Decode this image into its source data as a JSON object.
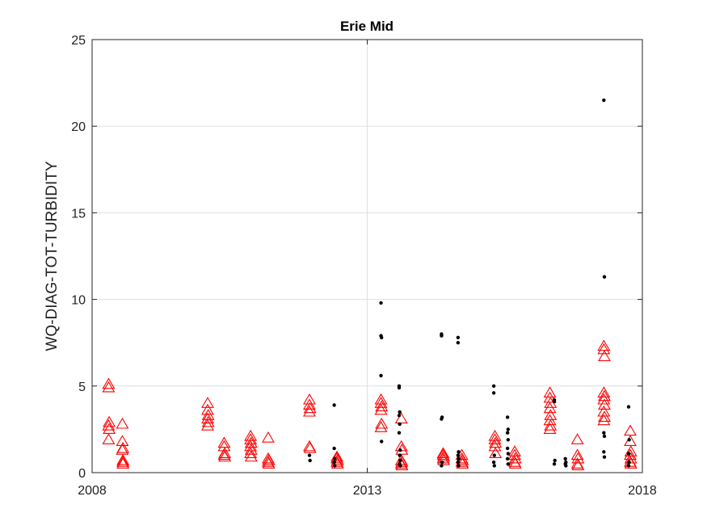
{
  "chart_data": {
    "type": "scatter",
    "title": "Erie Mid",
    "xlabel": "",
    "ylabel": "WQ-DIAG-TOT-TURBIDITY",
    "xlim": [
      2008,
      2018
    ],
    "ylim": [
      0,
      25
    ],
    "xticks": [
      2008,
      2013,
      2018
    ],
    "xtick_labels": [
      "2008",
      "2013",
      "2018"
    ],
    "yticks": [
      0,
      5,
      10,
      15,
      20,
      25
    ],
    "ytick_labels": [
      "0",
      "5",
      "10",
      "15",
      "20",
      "25"
    ],
    "grid": true,
    "legend": "none",
    "colors": {
      "observed": "#ff0000",
      "modelled": "#000000"
    },
    "series": [
      {
        "marker": "open-triangle",
        "color": "#ff0000",
        "points": [
          [
            2008.3,
            5.1
          ],
          [
            2008.3,
            4.9
          ],
          [
            2008.31,
            2.9
          ],
          [
            2008.3,
            2.7
          ],
          [
            2008.31,
            2.5
          ],
          [
            2008.3,
            1.9
          ],
          [
            2008.55,
            2.8
          ],
          [
            2008.55,
            1.8
          ],
          [
            2008.56,
            1.4
          ],
          [
            2008.55,
            1.3
          ],
          [
            2008.56,
            0.7
          ],
          [
            2008.56,
            0.6
          ],
          [
            2008.56,
            0.5
          ],
          [
            2010.1,
            4.0
          ],
          [
            2010.1,
            3.6
          ],
          [
            2010.11,
            3.3
          ],
          [
            2010.1,
            3.1
          ],
          [
            2010.11,
            2.9
          ],
          [
            2010.1,
            2.7
          ],
          [
            2010.4,
            1.7
          ],
          [
            2010.4,
            1.5
          ],
          [
            2010.41,
            1.1
          ],
          [
            2010.4,
            1.0
          ],
          [
            2010.41,
            0.9
          ],
          [
            2010.88,
            2.1
          ],
          [
            2010.88,
            1.9
          ],
          [
            2010.89,
            1.7
          ],
          [
            2010.88,
            1.5
          ],
          [
            2010.89,
            1.3
          ],
          [
            2010.88,
            1.1
          ],
          [
            2010.89,
            0.9
          ],
          [
            2011.2,
            2.0
          ],
          [
            2011.2,
            0.8
          ],
          [
            2011.21,
            0.7
          ],
          [
            2011.2,
            0.6
          ],
          [
            2011.21,
            0.5
          ],
          [
            2011.95,
            4.2
          ],
          [
            2011.95,
            3.9
          ],
          [
            2011.96,
            3.7
          ],
          [
            2011.95,
            3.5
          ],
          [
            2011.95,
            1.5
          ],
          [
            2011.96,
            1.4
          ],
          [
            2012.45,
            0.9
          ],
          [
            2012.45,
            0.8
          ],
          [
            2012.46,
            0.7
          ],
          [
            2012.45,
            0.6
          ],
          [
            2012.46,
            0.5
          ],
          [
            2013.25,
            4.2
          ],
          [
            2013.25,
            4.0
          ],
          [
            2013.26,
            3.8
          ],
          [
            2013.25,
            3.6
          ],
          [
            2013.26,
            2.8
          ],
          [
            2013.25,
            2.6
          ],
          [
            2013.62,
            3.1
          ],
          [
            2013.62,
            1.5
          ],
          [
            2013.63,
            1.3
          ],
          [
            2013.62,
            0.7
          ],
          [
            2013.63,
            0.6
          ],
          [
            2013.62,
            0.5
          ],
          [
            2013.63,
            0.4
          ],
          [
            2014.38,
            1.1
          ],
          [
            2014.38,
            1.0
          ],
          [
            2014.39,
            0.9
          ],
          [
            2014.38,
            0.8
          ],
          [
            2014.39,
            0.7
          ],
          [
            2014.72,
            1.0
          ],
          [
            2014.72,
            0.8
          ],
          [
            2014.73,
            0.7
          ],
          [
            2014.72,
            0.6
          ],
          [
            2014.73,
            0.5
          ],
          [
            2015.32,
            2.1
          ],
          [
            2015.32,
            1.9
          ],
          [
            2015.33,
            1.7
          ],
          [
            2015.32,
            1.5
          ],
          [
            2015.33,
            1.1
          ],
          [
            2015.68,
            1.2
          ],
          [
            2015.68,
            1.0
          ],
          [
            2015.69,
            0.8
          ],
          [
            2015.68,
            0.6
          ],
          [
            2015.69,
            0.5
          ],
          [
            2016.32,
            4.6
          ],
          [
            2016.32,
            4.3
          ],
          [
            2016.33,
            4.0
          ],
          [
            2016.32,
            3.7
          ],
          [
            2016.33,
            3.3
          ],
          [
            2016.32,
            3.0
          ],
          [
            2016.33,
            2.7
          ],
          [
            2016.32,
            2.5
          ],
          [
            2016.82,
            1.9
          ],
          [
            2016.82,
            1.0
          ],
          [
            2016.83,
            0.8
          ],
          [
            2016.82,
            0.5
          ],
          [
            2016.83,
            0.4
          ],
          [
            2017.3,
            7.3
          ],
          [
            2017.3,
            7.1
          ],
          [
            2017.31,
            6.7
          ],
          [
            2017.3,
            4.6
          ],
          [
            2017.31,
            4.4
          ],
          [
            2017.3,
            4.2
          ],
          [
            2017.31,
            3.9
          ],
          [
            2017.3,
            3.5
          ],
          [
            2017.31,
            3.2
          ],
          [
            2017.3,
            3.0
          ],
          [
            2017.78,
            2.4
          ],
          [
            2017.78,
            1.8
          ],
          [
            2017.79,
            1.2
          ],
          [
            2017.78,
            1.0
          ],
          [
            2017.79,
            0.8
          ],
          [
            2017.78,
            0.6
          ],
          [
            2017.79,
            0.5
          ]
        ]
      },
      {
        "marker": "dot",
        "color": "#000000",
        "points": [
          [
            2011.95,
            1.0
          ],
          [
            2011.96,
            0.7
          ],
          [
            2012.4,
            3.9
          ],
          [
            2012.4,
            1.4
          ],
          [
            2012.41,
            0.8
          ],
          [
            2012.4,
            0.6
          ],
          [
            2012.41,
            0.4
          ],
          [
            2013.25,
            9.8
          ],
          [
            2013.25,
            7.9
          ],
          [
            2013.26,
            7.8
          ],
          [
            2013.25,
            5.6
          ],
          [
            2013.26,
            1.8
          ],
          [
            2013.58,
            5.0
          ],
          [
            2013.58,
            4.9
          ],
          [
            2013.59,
            3.5
          ],
          [
            2013.58,
            3.3
          ],
          [
            2013.59,
            2.8
          ],
          [
            2013.58,
            2.3
          ],
          [
            2013.6,
            1.3
          ],
          [
            2013.59,
            1.0
          ],
          [
            2013.6,
            0.7
          ],
          [
            2013.59,
            0.5
          ],
          [
            2013.6,
            0.4
          ],
          [
            2014.35,
            8.0
          ],
          [
            2014.35,
            7.9
          ],
          [
            2014.36,
            3.2
          ],
          [
            2014.35,
            3.1
          ],
          [
            2014.36,
            0.6
          ],
          [
            2014.35,
            0.4
          ],
          [
            2014.65,
            7.8
          ],
          [
            2014.65,
            7.5
          ],
          [
            2014.66,
            1.2
          ],
          [
            2014.65,
            1.0
          ],
          [
            2014.66,
            0.8
          ],
          [
            2014.65,
            0.6
          ],
          [
            2014.66,
            0.4
          ],
          [
            2015.3,
            5.0
          ],
          [
            2015.3,
            4.6
          ],
          [
            2015.31,
            1.0
          ],
          [
            2015.3,
            0.6
          ],
          [
            2015.31,
            0.4
          ],
          [
            2015.55,
            3.2
          ],
          [
            2015.56,
            2.5
          ],
          [
            2015.55,
            2.3
          ],
          [
            2015.56,
            1.9
          ],
          [
            2015.55,
            1.4
          ],
          [
            2015.56,
            1.1
          ],
          [
            2015.55,
            0.8
          ],
          [
            2015.56,
            0.5
          ],
          [
            2016.4,
            4.2
          ],
          [
            2016.4,
            4.1
          ],
          [
            2016.41,
            0.7
          ],
          [
            2016.4,
            0.5
          ],
          [
            2016.6,
            0.8
          ],
          [
            2016.61,
            0.6
          ],
          [
            2016.6,
            0.5
          ],
          [
            2016.61,
            0.4
          ],
          [
            2017.3,
            21.5
          ],
          [
            2017.31,
            11.3
          ],
          [
            2017.3,
            2.3
          ],
          [
            2017.31,
            2.1
          ],
          [
            2017.3,
            1.2
          ],
          [
            2017.31,
            0.9
          ],
          [
            2017.75,
            3.8
          ],
          [
            2017.76,
            1.9
          ],
          [
            2017.75,
            1.1
          ],
          [
            2017.76,
            0.6
          ],
          [
            2017.75,
            0.4
          ]
        ]
      }
    ]
  }
}
